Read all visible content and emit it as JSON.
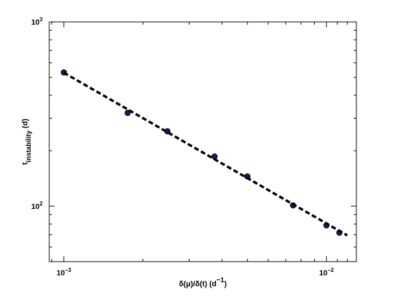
{
  "chart_data": {
    "type": "scatter",
    "xlabel": [
      "δ(μ)/δ(t) (d",
      "−1",
      ")"
    ],
    "ylabel": [
      "t",
      "instability",
      " (d)"
    ],
    "xlog": true,
    "ylog": true,
    "xlim": [
      0.00088,
      0.013
    ],
    "ylim": [
      50,
      1000
    ],
    "xticks": [
      {
        "value": 0.001,
        "label": "10",
        "exponent": "−3"
      },
      {
        "value": 0.01,
        "label": "10",
        "exponent": "−2"
      }
    ],
    "yticks": [
      {
        "value": 100,
        "label": "10",
        "exponent": "2"
      },
      {
        "value": 1000,
        "label": "10",
        "exponent": "3"
      }
    ],
    "xminorticks": [
      0.0009,
      0.002,
      0.003,
      0.004,
      0.005,
      0.006,
      0.007,
      0.008,
      0.009,
      0.011,
      0.012,
      0.013
    ],
    "yminorticks": [
      60,
      70,
      80,
      90,
      200,
      300,
      400,
      500,
      600,
      700,
      800,
      900
    ],
    "series": [
      {
        "name": "data",
        "style": "points",
        "color": "#1c1c5c",
        "x": [
          0.001,
          0.00175,
          0.00248,
          0.00375,
          0.005,
          0.00746,
          0.01,
          0.0112
        ],
        "values": [
          532,
          321,
          255,
          186,
          145,
          101,
          78.7,
          71.8
        ]
      },
      {
        "name": "fit",
        "style": "dashed-line",
        "color": "#000000",
        "x": [
          0.001,
          0.012
        ],
        "values": [
          530,
          69.4
        ]
      }
    ]
  }
}
